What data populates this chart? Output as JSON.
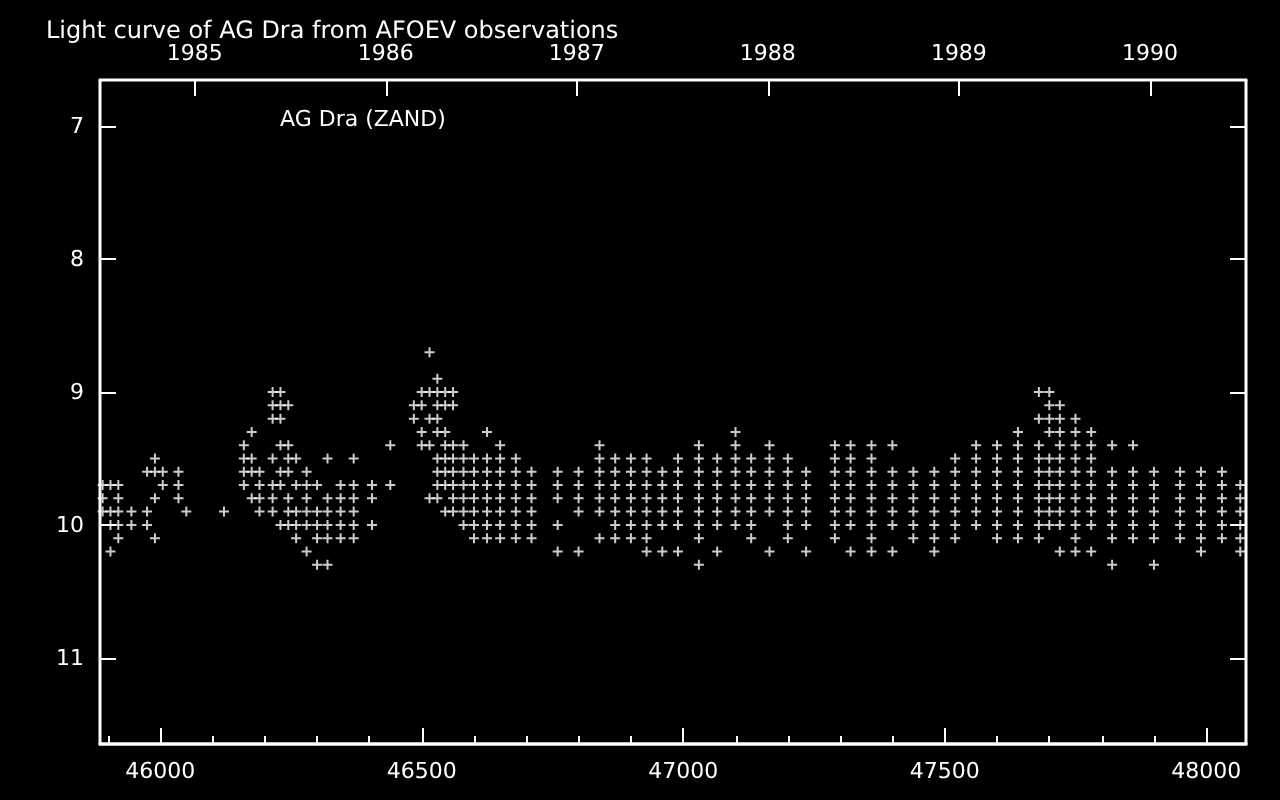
{
  "chart_data": {
    "type": "scatter",
    "title": "Light curve of AG Dra from AFOEV observations",
    "annotations": [
      "AG Dra (ZAND)"
    ],
    "marker": "cross",
    "grid": false,
    "xlim": [
      45885,
      48076
    ],
    "xticks": [
      {
        "value": 45900,
        "label": null
      },
      46000,
      {
        "value": 46100,
        "label": null
      },
      {
        "value": 46200,
        "label": null
      },
      {
        "value": 46300,
        "label": null
      },
      {
        "value": 46400,
        "label": null
      },
      46500,
      {
        "value": 46600,
        "label": null
      },
      {
        "value": 46700,
        "label": null
      },
      {
        "value": 46800,
        "label": null
      },
      {
        "value": 46900,
        "label": null
      },
      47000,
      {
        "value": 47100,
        "label": null
      },
      {
        "value": 47200,
        "label": null
      },
      {
        "value": 47300,
        "label": null
      },
      {
        "value": 47400,
        "label": null
      },
      47500,
      {
        "value": 47600,
        "label": null
      },
      {
        "value": 47700,
        "label": null
      },
      {
        "value": 47800,
        "label": null
      },
      {
        "value": 47900,
        "label": null
      },
      48000
    ],
    "x2lim": [
      1984.504,
      1990.503
    ],
    "x2ticks": [
      1985,
      1986,
      1987,
      1988,
      1989,
      1990
    ],
    "ylim": [
      11.65,
      6.65
    ],
    "yticks": [
      7,
      8,
      9,
      10,
      11
    ],
    "series": [
      {
        "color": "#ffffff",
        "x": [
          45890,
          45890,
          45890,
          45905,
          45905,
          45905,
          45905,
          45920,
          45920,
          45920,
          45920,
          45920,
          45945,
          45945,
          45975,
          45975,
          45975,
          45990,
          45990,
          45990,
          45990,
          46005,
          46005,
          46035,
          46035,
          46035,
          46050,
          46122,
          46160,
          46160,
          46160,
          46160,
          46175,
          46175,
          46175,
          46175,
          46190,
          46190,
          46190,
          46190,
          46215,
          46215,
          46215,
          46215,
          46215,
          46215,
          46215,
          46230,
          46230,
          46230,
          46230,
          46230,
          46230,
          46230,
          46245,
          46245,
          46245,
          46245,
          46245,
          46245,
          46245,
          46260,
          46260,
          46260,
          46260,
          46260,
          46280,
          46280,
          46280,
          46280,
          46280,
          46280,
          46300,
          46300,
          46300,
          46300,
          46300,
          46320,
          46320,
          46320,
          46320,
          46320,
          46320,
          46345,
          46345,
          46345,
          46345,
          46345,
          46370,
          46370,
          46370,
          46370,
          46370,
          46370,
          46405,
          46405,
          46405,
          46440,
          46440,
          46485,
          46485,
          46500,
          46500,
          46500,
          46500,
          46515,
          46515,
          46515,
          46515,
          46515,
          46530,
          46530,
          46530,
          46530,
          46530,
          46530,
          46530,
          46530,
          46530,
          46545,
          46545,
          46545,
          46545,
          46545,
          46545,
          46545,
          46545,
          46560,
          46560,
          46560,
          46560,
          46560,
          46560,
          46560,
          46560,
          46580,
          46580,
          46580,
          46580,
          46580,
          46580,
          46580,
          46600,
          46600,
          46600,
          46600,
          46600,
          46600,
          46600,
          46625,
          46625,
          46625,
          46625,
          46625,
          46625,
          46625,
          46625,
          46650,
          46650,
          46650,
          46650,
          46650,
          46650,
          46650,
          46650,
          46680,
          46680,
          46680,
          46680,
          46680,
          46680,
          46680,
          46710,
          46710,
          46710,
          46710,
          46710,
          46710,
          46760,
          46760,
          46760,
          46760,
          46760,
          46800,
          46800,
          46800,
          46800,
          46800,
          46840,
          46840,
          46840,
          46840,
          46840,
          46840,
          46840,
          46870,
          46870,
          46870,
          46870,
          46870,
          46870,
          46870,
          46900,
          46900,
          46900,
          46900,
          46900,
          46900,
          46900,
          46930,
          46930,
          46930,
          46930,
          46930,
          46930,
          46930,
          46930,
          46960,
          46960,
          46960,
          46960,
          46960,
          46960,
          46990,
          46990,
          46990,
          46990,
          46990,
          46990,
          46990,
          47030,
          47030,
          47030,
          47030,
          47030,
          47030,
          47030,
          47030,
          47030,
          47065,
          47065,
          47065,
          47065,
          47065,
          47065,
          47065,
          47100,
          47100,
          47100,
          47100,
          47100,
          47100,
          47100,
          47100,
          47130,
          47130,
          47130,
          47130,
          47130,
          47130,
          47130,
          47165,
          47165,
          47165,
          47165,
          47165,
          47165,
          47165,
          47200,
          47200,
          47200,
          47200,
          47200,
          47200,
          47200,
          47235,
          47235,
          47235,
          47235,
          47235,
          47235,
          47290,
          47290,
          47290,
          47290,
          47290,
          47290,
          47290,
          47290,
          47320,
          47320,
          47320,
          47320,
          47320,
          47320,
          47320,
          47320,
          47360,
          47360,
          47360,
          47360,
          47360,
          47360,
          47360,
          47360,
          47360,
          47400,
          47400,
          47400,
          47400,
          47400,
          47400,
          47400,
          47440,
          47440,
          47440,
          47440,
          47440,
          47440,
          47480,
          47480,
          47480,
          47480,
          47480,
          47480,
          47480,
          47520,
          47520,
          47520,
          47520,
          47520,
          47520,
          47520,
          47560,
          47560,
          47560,
          47560,
          47560,
          47560,
          47560,
          47600,
          47600,
          47600,
          47600,
          47600,
          47600,
          47600,
          47600,
          47640,
          47640,
          47640,
          47640,
          47640,
          47640,
          47640,
          47640,
          47640,
          47680,
          47680,
          47680,
          47680,
          47680,
          47680,
          47680,
          47680,
          47680,
          47680,
          47700,
          47700,
          47700,
          47700,
          47700,
          47700,
          47700,
          47700,
          47700,
          47700,
          47720,
          47720,
          47720,
          47720,
          47720,
          47720,
          47720,
          47720,
          47720,
          47720,
          47720,
          47750,
          47750,
          47750,
          47750,
          47750,
          47750,
          47750,
          47750,
          47750,
          47750,
          47750,
          47780,
          47780,
          47780,
          47780,
          47780,
          47780,
          47780,
          47780,
          47780,
          47820,
          47820,
          47820,
          47820,
          47820,
          47820,
          47820,
          47820,
          47860,
          47860,
          47860,
          47860,
          47860,
          47860,
          47860,
          47900,
          47900,
          47900,
          47900,
          47900,
          47900,
          47900,
          47950,
          47950,
          47950,
          47950,
          47950,
          47950,
          47990,
          47990,
          47990,
          47990,
          47990,
          47990,
          47990,
          48030,
          48030,
          48030,
          48030,
          48030,
          48030,
          48065,
          48065,
          48065,
          48065,
          48065,
          48065
        ],
        "values": [
          9.7,
          9.8,
          9.9,
          9.7,
          9.9,
          10.0,
          10.2,
          9.7,
          9.8,
          9.9,
          10.0,
          10.1,
          9.9,
          10.0,
          9.6,
          9.9,
          10.0,
          9.5,
          9.6,
          9.8,
          10.1,
          9.6,
          9.7,
          9.6,
          9.7,
          9.8,
          9.9,
          9.9,
          9.4,
          9.5,
          9.6,
          9.7,
          9.3,
          9.5,
          9.6,
          9.8,
          9.6,
          9.7,
          9.8,
          9.9,
          9.0,
          9.1,
          9.2,
          9.5,
          9.7,
          9.8,
          9.9,
          9.0,
          9.1,
          9.2,
          9.4,
          9.6,
          9.7,
          10.0,
          9.1,
          9.4,
          9.5,
          9.6,
          9.8,
          9.9,
          10.0,
          9.5,
          9.7,
          9.9,
          10.0,
          10.1,
          9.6,
          9.7,
          9.8,
          9.9,
          10.0,
          10.2,
          9.7,
          9.9,
          10.0,
          10.1,
          10.3,
          9.5,
          9.8,
          9.9,
          10.0,
          10.1,
          10.3,
          9.7,
          9.8,
          9.9,
          10.0,
          10.1,
          9.5,
          9.7,
          9.8,
          9.9,
          10.0,
          10.1,
          9.7,
          9.8,
          10.0,
          9.4,
          9.7,
          9.1,
          9.2,
          9.0,
          9.1,
          9.3,
          9.4,
          8.7,
          9.0,
          9.2,
          9.4,
          9.8,
          8.9,
          9.0,
          9.1,
          9.2,
          9.3,
          9.5,
          9.6,
          9.7,
          9.8,
          9.0,
          9.1,
          9.3,
          9.4,
          9.5,
          9.6,
          9.7,
          9.9,
          9.0,
          9.1,
          9.4,
          9.5,
          9.6,
          9.7,
          9.8,
          9.9,
          9.4,
          9.5,
          9.6,
          9.7,
          9.8,
          9.9,
          10.0,
          9.5,
          9.6,
          9.7,
          9.8,
          9.9,
          10.0,
          10.1,
          9.3,
          9.5,
          9.6,
          9.7,
          9.8,
          9.9,
          10.0,
          10.1,
          9.4,
          9.5,
          9.6,
          9.7,
          9.8,
          9.9,
          10.0,
          10.1,
          9.5,
          9.6,
          9.7,
          9.8,
          9.9,
          10.0,
          10.1,
          9.6,
          9.7,
          9.8,
          9.9,
          10.0,
          10.1,
          9.6,
          9.7,
          9.8,
          10.0,
          10.2,
          9.6,
          9.7,
          9.8,
          9.9,
          10.2,
          9.4,
          9.5,
          9.6,
          9.7,
          9.8,
          9.9,
          10.1,
          9.5,
          9.6,
          9.7,
          9.8,
          9.9,
          10.0,
          10.1,
          9.5,
          9.6,
          9.7,
          9.8,
          9.9,
          10.0,
          10.1,
          9.5,
          9.6,
          9.7,
          9.8,
          9.9,
          10.0,
          10.1,
          10.2,
          9.6,
          9.7,
          9.8,
          9.9,
          10.0,
          10.2,
          9.5,
          9.6,
          9.7,
          9.8,
          9.9,
          10.0,
          10.2,
          9.4,
          9.5,
          9.6,
          9.7,
          9.8,
          9.9,
          10.0,
          10.1,
          10.3,
          9.5,
          9.6,
          9.7,
          9.8,
          9.9,
          10.0,
          10.2,
          9.3,
          9.4,
          9.5,
          9.6,
          9.7,
          9.8,
          9.9,
          10.0,
          9.5,
          9.6,
          9.7,
          9.8,
          9.9,
          10.0,
          10.1,
          9.4,
          9.5,
          9.6,
          9.7,
          9.8,
          9.9,
          10.2,
          9.5,
          9.6,
          9.7,
          9.8,
          9.9,
          10.0,
          10.1,
          9.6,
          9.7,
          9.8,
          9.9,
          10.0,
          10.2,
          9.4,
          9.5,
          9.6,
          9.7,
          9.8,
          9.9,
          10.0,
          10.1,
          9.4,
          9.5,
          9.6,
          9.7,
          9.8,
          9.9,
          10.0,
          10.2,
          9.4,
          9.5,
          9.6,
          9.7,
          9.8,
          9.9,
          10.0,
          10.1,
          10.2,
          9.4,
          9.6,
          9.7,
          9.8,
          9.9,
          10.0,
          10.2,
          9.6,
          9.7,
          9.8,
          9.9,
          10.0,
          10.1,
          9.6,
          9.7,
          9.8,
          9.9,
          10.0,
          10.1,
          10.2,
          9.5,
          9.6,
          9.7,
          9.8,
          9.9,
          10.0,
          10.1,
          9.4,
          9.5,
          9.6,
          9.7,
          9.8,
          9.9,
          10.0,
          9.4,
          9.5,
          9.6,
          9.7,
          9.8,
          9.9,
          10.0,
          10.1,
          9.3,
          9.4,
          9.5,
          9.6,
          9.7,
          9.8,
          9.9,
          10.0,
          10.1,
          9.0,
          9.2,
          9.4,
          9.5,
          9.6,
          9.7,
          9.8,
          9.9,
          10.0,
          10.1,
          9.0,
          9.1,
          9.2,
          9.3,
          9.5,
          9.6,
          9.7,
          9.8,
          9.9,
          10.0,
          9.1,
          9.2,
          9.3,
          9.4,
          9.5,
          9.6,
          9.7,
          9.8,
          9.9,
          10.0,
          10.2,
          9.2,
          9.3,
          9.4,
          9.5,
          9.6,
          9.7,
          9.8,
          9.9,
          10.0,
          10.1,
          10.2,
          9.3,
          9.4,
          9.5,
          9.6,
          9.7,
          9.8,
          9.9,
          10.0,
          10.2,
          9.4,
          9.6,
          9.7,
          9.8,
          9.9,
          10.0,
          10.1,
          10.3,
          9.4,
          9.6,
          9.7,
          9.8,
          9.9,
          10.0,
          10.1,
          9.6,
          9.7,
          9.8,
          9.9,
          10.0,
          10.1,
          10.3,
          9.6,
          9.7,
          9.8,
          9.9,
          10.0,
          10.1,
          9.6,
          9.7,
          9.8,
          9.9,
          10.0,
          10.1,
          10.2,
          9.6,
          9.7,
          9.8,
          9.9,
          10.0,
          10.1,
          9.7,
          9.8,
          9.9,
          10.0,
          10.1,
          10.2
        ]
      }
    ]
  }
}
